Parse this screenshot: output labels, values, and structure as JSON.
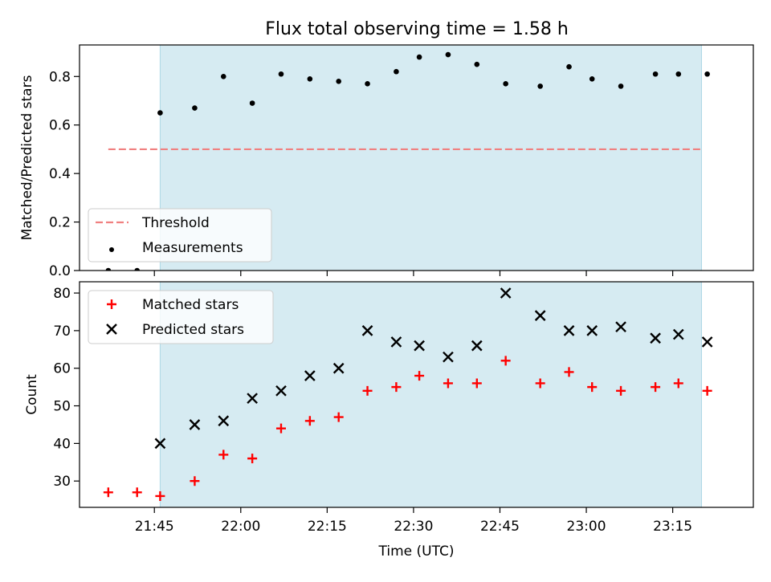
{
  "title": "Flux total observing time = 1.58 h",
  "colors": {
    "highlight_band": "#add8e6",
    "threshold_line": "#f08080",
    "measurements": "#000000",
    "matched": "#ff0000",
    "predicted": "#000000",
    "axes": "#000000",
    "background": "#ffffff"
  },
  "chart_data": [
    {
      "type": "scatter",
      "panel": "top",
      "title": "Flux total observing time = 1.58 h",
      "xlabel": "",
      "ylabel": "Matched/Predicted stars",
      "ylim": [
        0.0,
        0.93
      ],
      "yticks": [
        0.0,
        0.2,
        0.4,
        0.6,
        0.8
      ],
      "ytick_labels": [
        "0.0",
        "0.2",
        "0.4",
        "0.6",
        "0.8"
      ],
      "xlim": [
        "21:32",
        "23:29"
      ],
      "x_tick_positions": [
        "21:45",
        "22:00",
        "22:15",
        "22:30",
        "22:45",
        "23:00",
        "23:15"
      ],
      "shaded_region": {
        "x_start": "21:46",
        "x_end": "23:20"
      },
      "legend_position": "lower-left",
      "series": [
        {
          "name": "Threshold",
          "kind": "dashed-line",
          "x": [
            "21:37",
            "23:20"
          ],
          "values": [
            0.5,
            0.5
          ]
        },
        {
          "name": "Measurements",
          "kind": "dots",
          "x": [
            "21:37",
            "21:42",
            "21:46",
            "21:52",
            "21:57",
            "22:02",
            "22:07",
            "22:12",
            "22:17",
            "22:22",
            "22:27",
            "22:31",
            "22:36",
            "22:41",
            "22:46",
            "22:52",
            "22:57",
            "23:01",
            "23:06",
            "23:12",
            "23:16",
            "23:21"
          ],
          "values": [
            0.0,
            0.0,
            0.65,
            0.67,
            0.8,
            0.69,
            0.81,
            0.79,
            0.78,
            0.77,
            0.82,
            0.88,
            0.89,
            0.85,
            0.77,
            0.76,
            0.84,
            0.79,
            0.76,
            0.81,
            0.81,
            0.81
          ]
        }
      ]
    },
    {
      "type": "scatter",
      "panel": "bottom",
      "xlabel": "Time (UTC)",
      "ylabel": "Count",
      "ylim": [
        23,
        83
      ],
      "yticks": [
        30,
        40,
        50,
        60,
        70,
        80
      ],
      "ytick_labels": [
        "30",
        "40",
        "50",
        "60",
        "70",
        "80"
      ],
      "xlim": [
        "21:32",
        "23:29"
      ],
      "x_tick_positions": [
        "21:45",
        "22:00",
        "22:15",
        "22:30",
        "22:45",
        "23:00",
        "23:15"
      ],
      "x_tick_labels": [
        "21:45",
        "22:00",
        "22:15",
        "22:30",
        "22:45",
        "23:00",
        "23:15"
      ],
      "shaded_region": {
        "x_start": "21:46",
        "x_end": "23:20"
      },
      "legend_position": "upper-left",
      "series": [
        {
          "name": "Matched stars",
          "marker": "plus",
          "x": [
            "21:37",
            "21:42",
            "21:46",
            "21:52",
            "21:57",
            "22:02",
            "22:07",
            "22:12",
            "22:17",
            "22:22",
            "22:27",
            "22:31",
            "22:36",
            "22:41",
            "22:46",
            "22:52",
            "22:57",
            "23:01",
            "23:06",
            "23:12",
            "23:16",
            "23:21"
          ],
          "values": [
            27,
            27,
            26,
            30,
            37,
            36,
            44,
            46,
            47,
            54,
            55,
            58,
            56,
            56,
            62,
            56,
            59,
            55,
            54,
            55,
            56,
            54
          ]
        },
        {
          "name": "Predicted stars",
          "marker": "x",
          "x": [
            "21:46",
            "21:52",
            "21:57",
            "22:02",
            "22:07",
            "22:12",
            "22:17",
            "22:22",
            "22:27",
            "22:31",
            "22:36",
            "22:41",
            "22:46",
            "22:52",
            "22:57",
            "23:01",
            "23:06",
            "23:12",
            "23:16",
            "23:21"
          ],
          "values": [
            40,
            45,
            46,
            52,
            54,
            58,
            60,
            70,
            67,
            66,
            63,
            66,
            80,
            74,
            70,
            70,
            71,
            68,
            69,
            67
          ]
        }
      ]
    }
  ]
}
